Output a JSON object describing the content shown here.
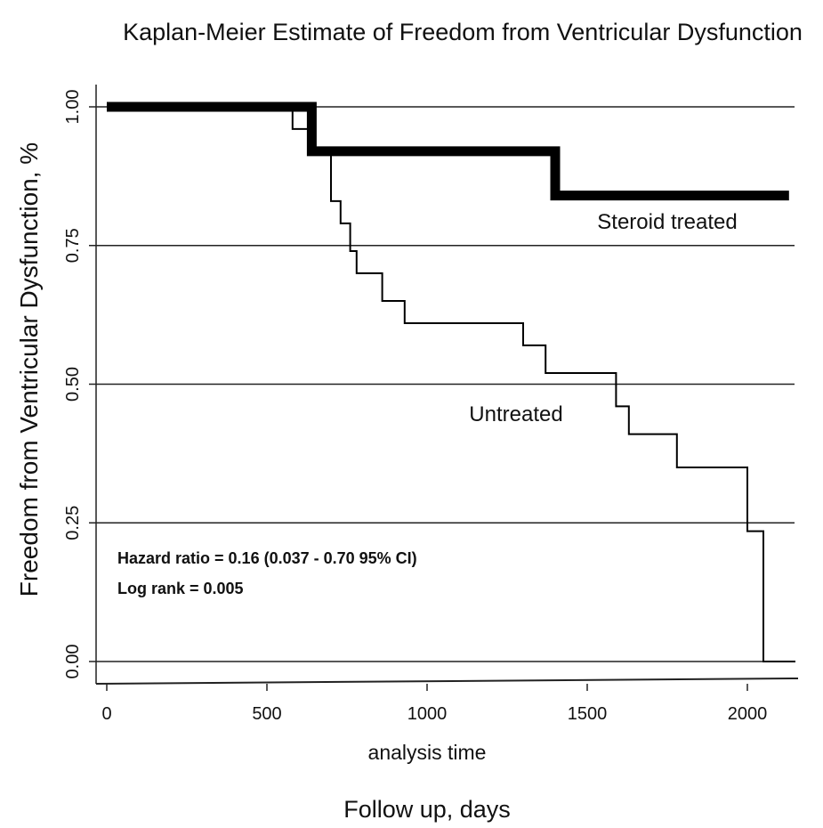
{
  "chart_data": {
    "type": "line",
    "title": "Kaplan-Meier Estimate of Freedom from Ventricular Dysfunction",
    "ylabel": "Freedom from Ventricular Dysfunction, %",
    "xlabel": "analysis time",
    "xlabel_secondary": "Follow up, days",
    "xlim": [
      0,
      2150
    ],
    "ylim": [
      0,
      1
    ],
    "grid": "horizontal",
    "x_ticks": [
      "0",
      "500",
      "1000",
      "1500",
      "2000"
    ],
    "y_ticks": [
      "0.00",
      "0.25",
      "0.50",
      "0.75",
      "1.00"
    ],
    "series": [
      {
        "name": "Steroid treated",
        "step": true,
        "x": [
          0,
          640,
          1400,
          2130
        ],
        "y": [
          1.0,
          0.92,
          0.84,
          0.84
        ]
      },
      {
        "name": "Untreated",
        "step": true,
        "x": [
          0,
          580,
          640,
          700,
          730,
          760,
          780,
          860,
          930,
          1300,
          1370,
          1590,
          1630,
          1780,
          2000,
          2050,
          2150
        ],
        "y": [
          1.0,
          0.96,
          0.92,
          0.83,
          0.79,
          0.74,
          0.7,
          0.65,
          0.61,
          0.57,
          0.52,
          0.46,
          0.41,
          0.35,
          0.235,
          0.0,
          0.0
        ]
      }
    ],
    "annotations": {
      "hazard_ratio": "Hazard ratio = 0.16 (0.037 - 0.70 95% CI)",
      "log_rank": "Log rank = 0.005"
    }
  }
}
